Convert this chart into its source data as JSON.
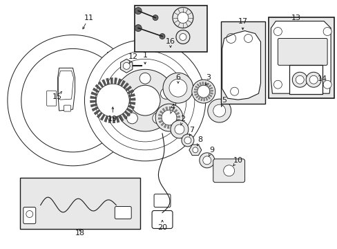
{
  "bg_color": "#ffffff",
  "line_color": "#1a1a1a",
  "fill_light": "#e8e8e8",
  "fill_mid": "#cccccc",
  "fig_width": 4.89,
  "fig_height": 3.6,
  "dpi": 100
}
